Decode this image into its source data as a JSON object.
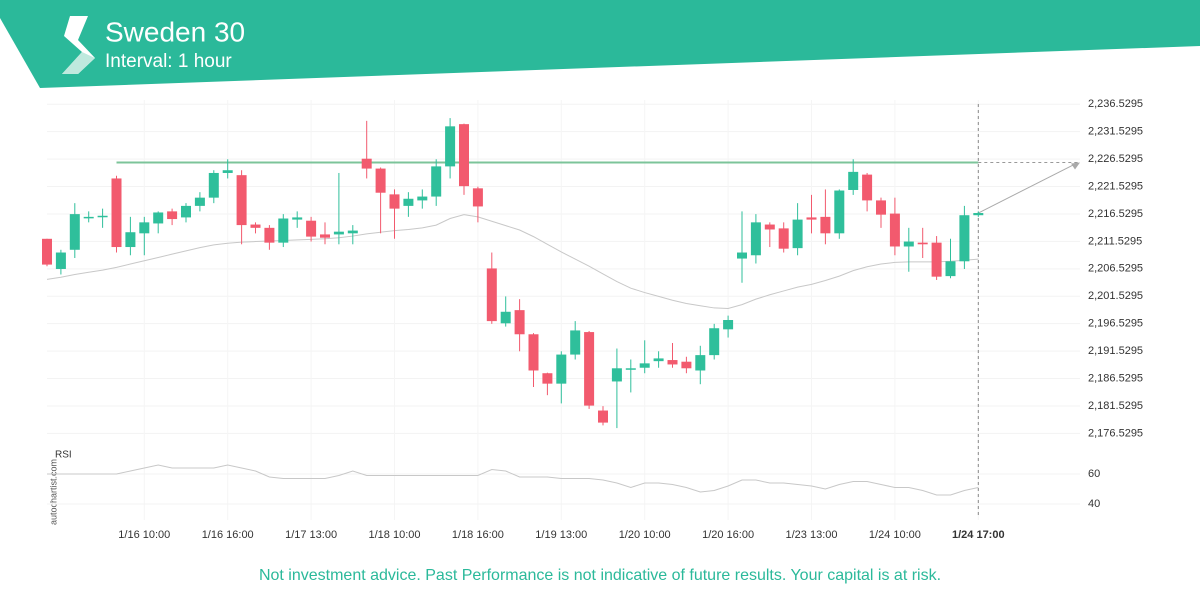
{
  "header": {
    "title": "Sweden 30",
    "subtitle": "Interval: 1 hour"
  },
  "footer": "Not investment advice. Past Performance is not indicative of future results. Your capital is at risk.",
  "watermark": "autochartist.com",
  "chart_data": [
    {
      "type": "candlestick",
      "up_color": "#2fbf9b",
      "down_color": "#f25a6e",
      "categories": [
        null,
        null,
        null,
        null,
        null,
        null,
        null,
        "1/16 10:00",
        null,
        null,
        null,
        null,
        null,
        "1/16 16:00",
        null,
        null,
        null,
        null,
        null,
        "1/17 13:00",
        null,
        null,
        null,
        null,
        null,
        "1/18 10:00",
        null,
        null,
        null,
        null,
        null,
        "1/18 16:00",
        null,
        null,
        null,
        null,
        null,
        "1/19 13:00",
        null,
        null,
        null,
        null,
        null,
        "1/20 10:00",
        null,
        null,
        null,
        null,
        null,
        "1/20 16:00",
        null,
        null,
        null,
        null,
        null,
        "1/23 13:00",
        null,
        null,
        null,
        null,
        null,
        "1/24 10:00",
        null,
        null,
        null,
        null,
        null,
        "1/24 17:00"
      ],
      "open": [
        2212,
        2206.5,
        2210,
        2215.8,
        2216,
        2223,
        2210.5,
        2213,
        2214.8,
        2217,
        2215.9,
        2218,
        2219.5,
        2224,
        2223.6,
        2214.6,
        2214,
        2211.3,
        2215.5,
        2215.3,
        2212.8,
        2212.8,
        2213,
        2226.6,
        2224.8,
        2220.1,
        2218,
        2219,
        2219.7,
        2225.2,
        2232.9,
        2221.2,
        2206.6,
        2196.6,
        2199,
        2194.6,
        2187.5,
        2185.6,
        2190.9,
        2195,
        2180.7,
        2186,
        2188.3,
        2188.5,
        2189.7,
        2189.9,
        2189.6,
        2188,
        2190.8,
        2195.5,
        2208.4,
        2209,
        2214.6,
        2213.9,
        2210.3,
        2215.9,
        2216,
        2213,
        2220.9,
        2223.7,
        2219,
        2216.6,
        2210.6,
        2211.3,
        2211.3,
        2205.2,
        2207.9,
        2216.3
      ],
      "high": [
        2212,
        2210,
        2218.5,
        2217,
        2217.5,
        2223.5,
        2216,
        2216,
        2217,
        2217.5,
        2218.5,
        2220.5,
        2224.5,
        2226.5,
        2224.5,
        2215,
        2214.5,
        2216.5,
        2217,
        2216,
        2215,
        2224,
        2214.5,
        2233.5,
        2225,
        2221,
        2220.5,
        2221,
        2226.5,
        2234,
        2233,
        2221.5,
        2209.5,
        2201.5,
        2201,
        2194.8,
        2187.6,
        2191.5,
        2197,
        2195.2,
        2181.5,
        2192,
        2190,
        2193.5,
        2191.5,
        2193,
        2190.5,
        2192.5,
        2196.5,
        2198,
        2217,
        2216.5,
        2215,
        2215,
        2218.5,
        2220,
        2221,
        2221,
        2226.5,
        2224,
        2219.5,
        2219.5,
        2214,
        2214,
        2212.5,
        2212,
        2218,
        2217
      ],
      "low": [
        2207,
        2205.5,
        2208.5,
        2215,
        2214,
        2209.5,
        2209,
        2209,
        2213,
        2214.5,
        2215,
        2217,
        2218.5,
        2223,
        2211,
        2213,
        2210,
        2210.5,
        2214,
        2211.5,
        2211,
        2211,
        2211,
        2223,
        2213,
        2212,
        2216,
        2217.5,
        2218,
        2223,
        2220,
        2215,
        2196.5,
        2196,
        2191.5,
        2185,
        2183.5,
        2182,
        2190,
        2181,
        2178,
        2177.5,
        2184,
        2187.5,
        2188.5,
        2188.5,
        2187.5,
        2185.5,
        2190,
        2194,
        2204,
        2207.5,
        2210.5,
        2209.5,
        2209,
        2213,
        2211,
        2212,
        2220,
        2217,
        2214,
        2209,
        2206,
        2208.5,
        2204.5,
        2204.8,
        2206.5,
        2216
      ],
      "close": [
        2207.3,
        2209.5,
        2216.5,
        2216,
        2216.2,
        2210.5,
        2213.2,
        2215,
        2216.8,
        2215.6,
        2218,
        2219.5,
        2224,
        2224.5,
        2214.5,
        2214,
        2211.3,
        2215.7,
        2215.9,
        2212.4,
        2212.2,
        2213.3,
        2213.5,
        2224.8,
        2220.4,
        2217.5,
        2219.3,
        2219.7,
        2225.2,
        2232.5,
        2221.6,
        2217.9,
        2197,
        2198.7,
        2194.6,
        2188,
        2185.6,
        2190.9,
        2195.3,
        2181.6,
        2178.5,
        2188.4,
        2188.4,
        2189.3,
        2190.2,
        2189.1,
        2188.4,
        2190.8,
        2195.7,
        2197.2,
        2209.5,
        2215,
        2213.7,
        2210.2,
        2215.5,
        2215.5,
        2213,
        2220.8,
        2224.2,
        2219,
        2216.4,
        2210.6,
        2211.5,
        2211,
        2205.1,
        2207.9,
        2216.3,
        2216.7
      ],
      "overlay": {
        "color": "#c8c8c8",
        "values": [
          2204.6,
          2205,
          2205.5,
          2205.9,
          2206.3,
          2206.8,
          2207.4,
          2208,
          2208.6,
          2209.2,
          2209.8,
          2210.4,
          2210.9,
          2211.2,
          2211.4,
          2211.5,
          2211.6,
          2211.7,
          2211.8,
          2211.9,
          2212,
          2212.2,
          2212.5,
          2212.9,
          2213.2,
          2213.5,
          2213.7,
          2214,
          2214.5,
          2215.7,
          2216.4,
          2216,
          2215.2,
          2214.4,
          2213.6,
          2212.4,
          2211,
          2209.6,
          2208.3,
          2207,
          2205.6,
          2204.2,
          2203,
          2202.2,
          2201.5,
          2200.8,
          2200.2,
          2199.8,
          2199.4,
          2199.3,
          2200,
          2201,
          2201.8,
          2202.5,
          2203.2,
          2203.7,
          2204.4,
          2205.2,
          2206.2,
          2206.9,
          2207.4,
          2207.7,
          2207.8,
          2207.8,
          2207.8,
          2207.9,
          2208.1,
          2208.3
        ]
      },
      "level": 2225.9,
      "level_color": "#7cc49a",
      "ylim": [
        2174.6,
        2237.3
      ],
      "grid": true,
      "yticks": [
        {
          "value": 2236.5295,
          "label": "2,236.5295"
        },
        {
          "value": 2231.5295,
          "label": "2,231.5295"
        },
        {
          "value": 2226.5295,
          "label": "2,226.5295"
        },
        {
          "value": 2221.5295,
          "label": "2,221.5295"
        },
        {
          "value": 2216.5295,
          "label": "2,216.5295"
        },
        {
          "value": 2211.5295,
          "label": "2,211.5295"
        },
        {
          "value": 2206.5295,
          "label": "2,206.5295"
        },
        {
          "value": 2201.5295,
          "label": "2,201.5295"
        },
        {
          "value": 2196.5295,
          "label": "2,196.5295"
        },
        {
          "value": 2191.5295,
          "label": "2,191.5295"
        },
        {
          "value": 2186.5295,
          "label": "2,186.5295"
        },
        {
          "value": 2181.5295,
          "label": "2,181.5295"
        },
        {
          "value": 2176.5295,
          "label": "2,176.5295"
        }
      ]
    },
    {
      "type": "line",
      "title": "RSI",
      "color": "#c8c8c8",
      "values": [
        60,
        60,
        60,
        60,
        60,
        60,
        62,
        64,
        66,
        64,
        64,
        64,
        64,
        66,
        64,
        62,
        58,
        57,
        57,
        57,
        57,
        59,
        62,
        59,
        59,
        59,
        59,
        59,
        59,
        59,
        59,
        59,
        63,
        62,
        58,
        58,
        58,
        57,
        57,
        57,
        56,
        54,
        51,
        54,
        54,
        53,
        51,
        48,
        49,
        52,
        56,
        56,
        54,
        54,
        53,
        52,
        50,
        53,
        55,
        55,
        53,
        51,
        51,
        49,
        46,
        46,
        49,
        51
      ],
      "ylim": [
        29.3,
        72.7
      ],
      "yticks": [
        60,
        40
      ]
    }
  ]
}
